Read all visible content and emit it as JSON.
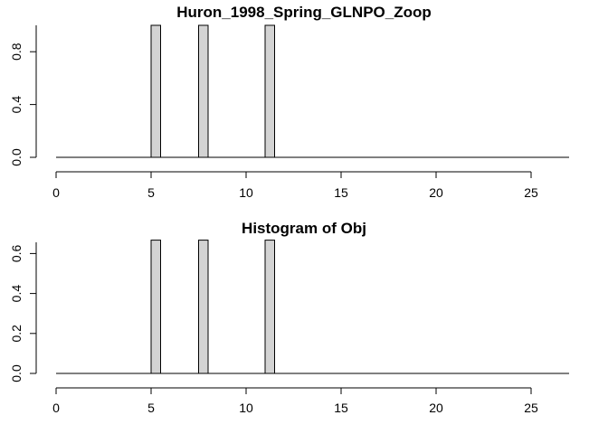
{
  "chart_data": [
    {
      "type": "bar",
      "title": "Huron_1998_Spring_GLNPO_Zoop",
      "xlabel": "",
      "ylabel": "",
      "xlim": [
        0,
        27
      ],
      "ylim": [
        0,
        1
      ],
      "x_ticks": [
        0,
        5,
        10,
        15,
        20,
        25
      ],
      "y_ticks": [
        0.0,
        0.4,
        0.8
      ],
      "y_tick_labels": [
        "0.0",
        "0.4",
        "0.8"
      ],
      "bars": [
        {
          "x0": 5.0,
          "x1": 5.5,
          "value": 1.0
        },
        {
          "x0": 7.5,
          "x1": 8.0,
          "value": 1.0
        },
        {
          "x0": 11.0,
          "x1": 11.5,
          "value": 1.0
        }
      ],
      "baseline": [
        0,
        27
      ]
    },
    {
      "type": "bar",
      "title": "Histogram of Obj",
      "xlabel": "",
      "ylabel": "",
      "xlim": [
        0,
        27
      ],
      "ylim": [
        0,
        0.667
      ],
      "x_ticks": [
        0,
        5,
        10,
        15,
        20,
        25
      ],
      "y_ticks": [
        0.0,
        0.2,
        0.4,
        0.6
      ],
      "y_tick_labels": [
        "0.0",
        "0.2",
        "0.4",
        "0.6"
      ],
      "bars": [
        {
          "x0": 5.0,
          "x1": 5.5,
          "value": 0.667
        },
        {
          "x0": 7.5,
          "x1": 8.0,
          "value": 0.667
        },
        {
          "x0": 11.0,
          "x1": 11.5,
          "value": 0.667
        }
      ],
      "baseline": [
        0,
        27
      ]
    }
  ]
}
